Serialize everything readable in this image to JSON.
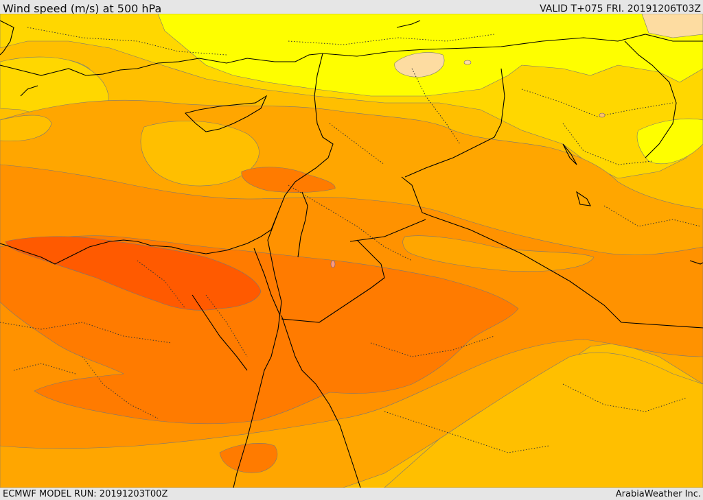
{
  "header": {
    "title": "Wind speed (m/s) at 500 hPa",
    "valid": "VALID T+075 FRI. 20191206T03Z"
  },
  "footer": {
    "model_run": "ECMWF MODEL RUN: 20191203T00Z",
    "credit": "ArabiaWeather Inc."
  },
  "palette": {
    "light_yellow": "#fefe00",
    "yellow": "#ffd700",
    "amber": "#ffbf00",
    "light_orange": "#ffa600",
    "orange": "#ff9200",
    "dark_orange": "#ff7b00",
    "red_orange": "#ff5a00",
    "peach": "#fddca1",
    "coastline": "#000000",
    "contour": "#6a5a8a"
  }
}
